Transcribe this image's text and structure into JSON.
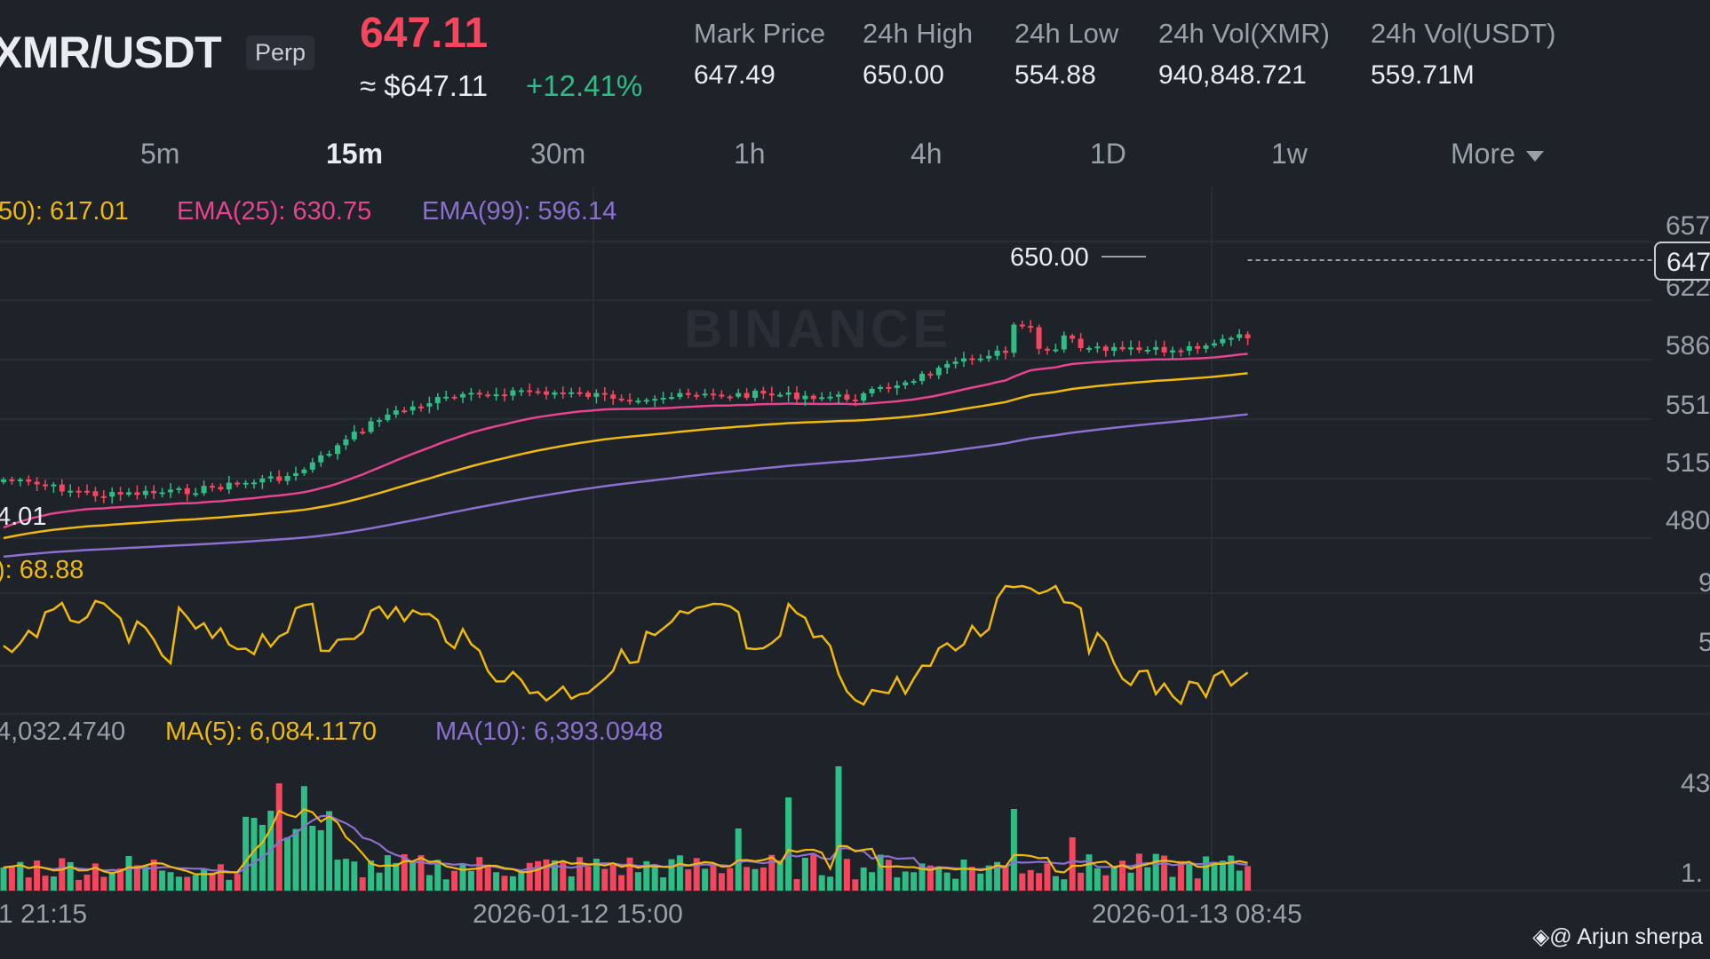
{
  "header": {
    "pair": "XMR/USDT",
    "badge": "Perp",
    "last_price": "647.11",
    "usd_price": "≈ $647.11",
    "change": "+12.41%",
    "stats": [
      {
        "label": "Mark Price",
        "value": "647.49"
      },
      {
        "label": "24h High",
        "value": "650.00"
      },
      {
        "label": "24h Low",
        "value": "554.88"
      },
      {
        "label": "24h Vol(XMR)",
        "value": "940,848.721"
      },
      {
        "label": "24h Vol(USDT)",
        "value": "559.71M"
      }
    ]
  },
  "timeframes": [
    "5m",
    "15m",
    "30m",
    "1h",
    "4h",
    "1D",
    "1w",
    "More"
  ],
  "active_timeframe": "15m",
  "legend": {
    "ema7": "50): 617.01",
    "ema25": "EMA(25): 630.75",
    "ema99": "EMA(99): 596.14"
  },
  "price_axis": [
    "657",
    "647",
    "622",
    "586",
    "551",
    "515",
    "480"
  ],
  "high_marker": "650.00",
  "low_marker": "4.01",
  "rsi_label": "): 68.88",
  "rsi_axis": [
    "9",
    "5"
  ],
  "volume_labels": {
    "vol": "4,032.4740",
    "ma5": "MA(5): 6,084.1170",
    "ma10": "MA(10): 6,393.0948"
  },
  "volume_axis": [
    "43",
    "1."
  ],
  "time_axis": [
    "1 21:15",
    "2026-01-12 15:00",
    "2026-01-13 08:45"
  ],
  "credit": "@ Arjun sherpa",
  "watermark": "BINANCE",
  "colors": {
    "up": "#2ebd85",
    "down": "#f6465d",
    "ema7": "#f0b90b",
    "ema25": "#e84393",
    "ema99": "#8c6fd1"
  }
}
